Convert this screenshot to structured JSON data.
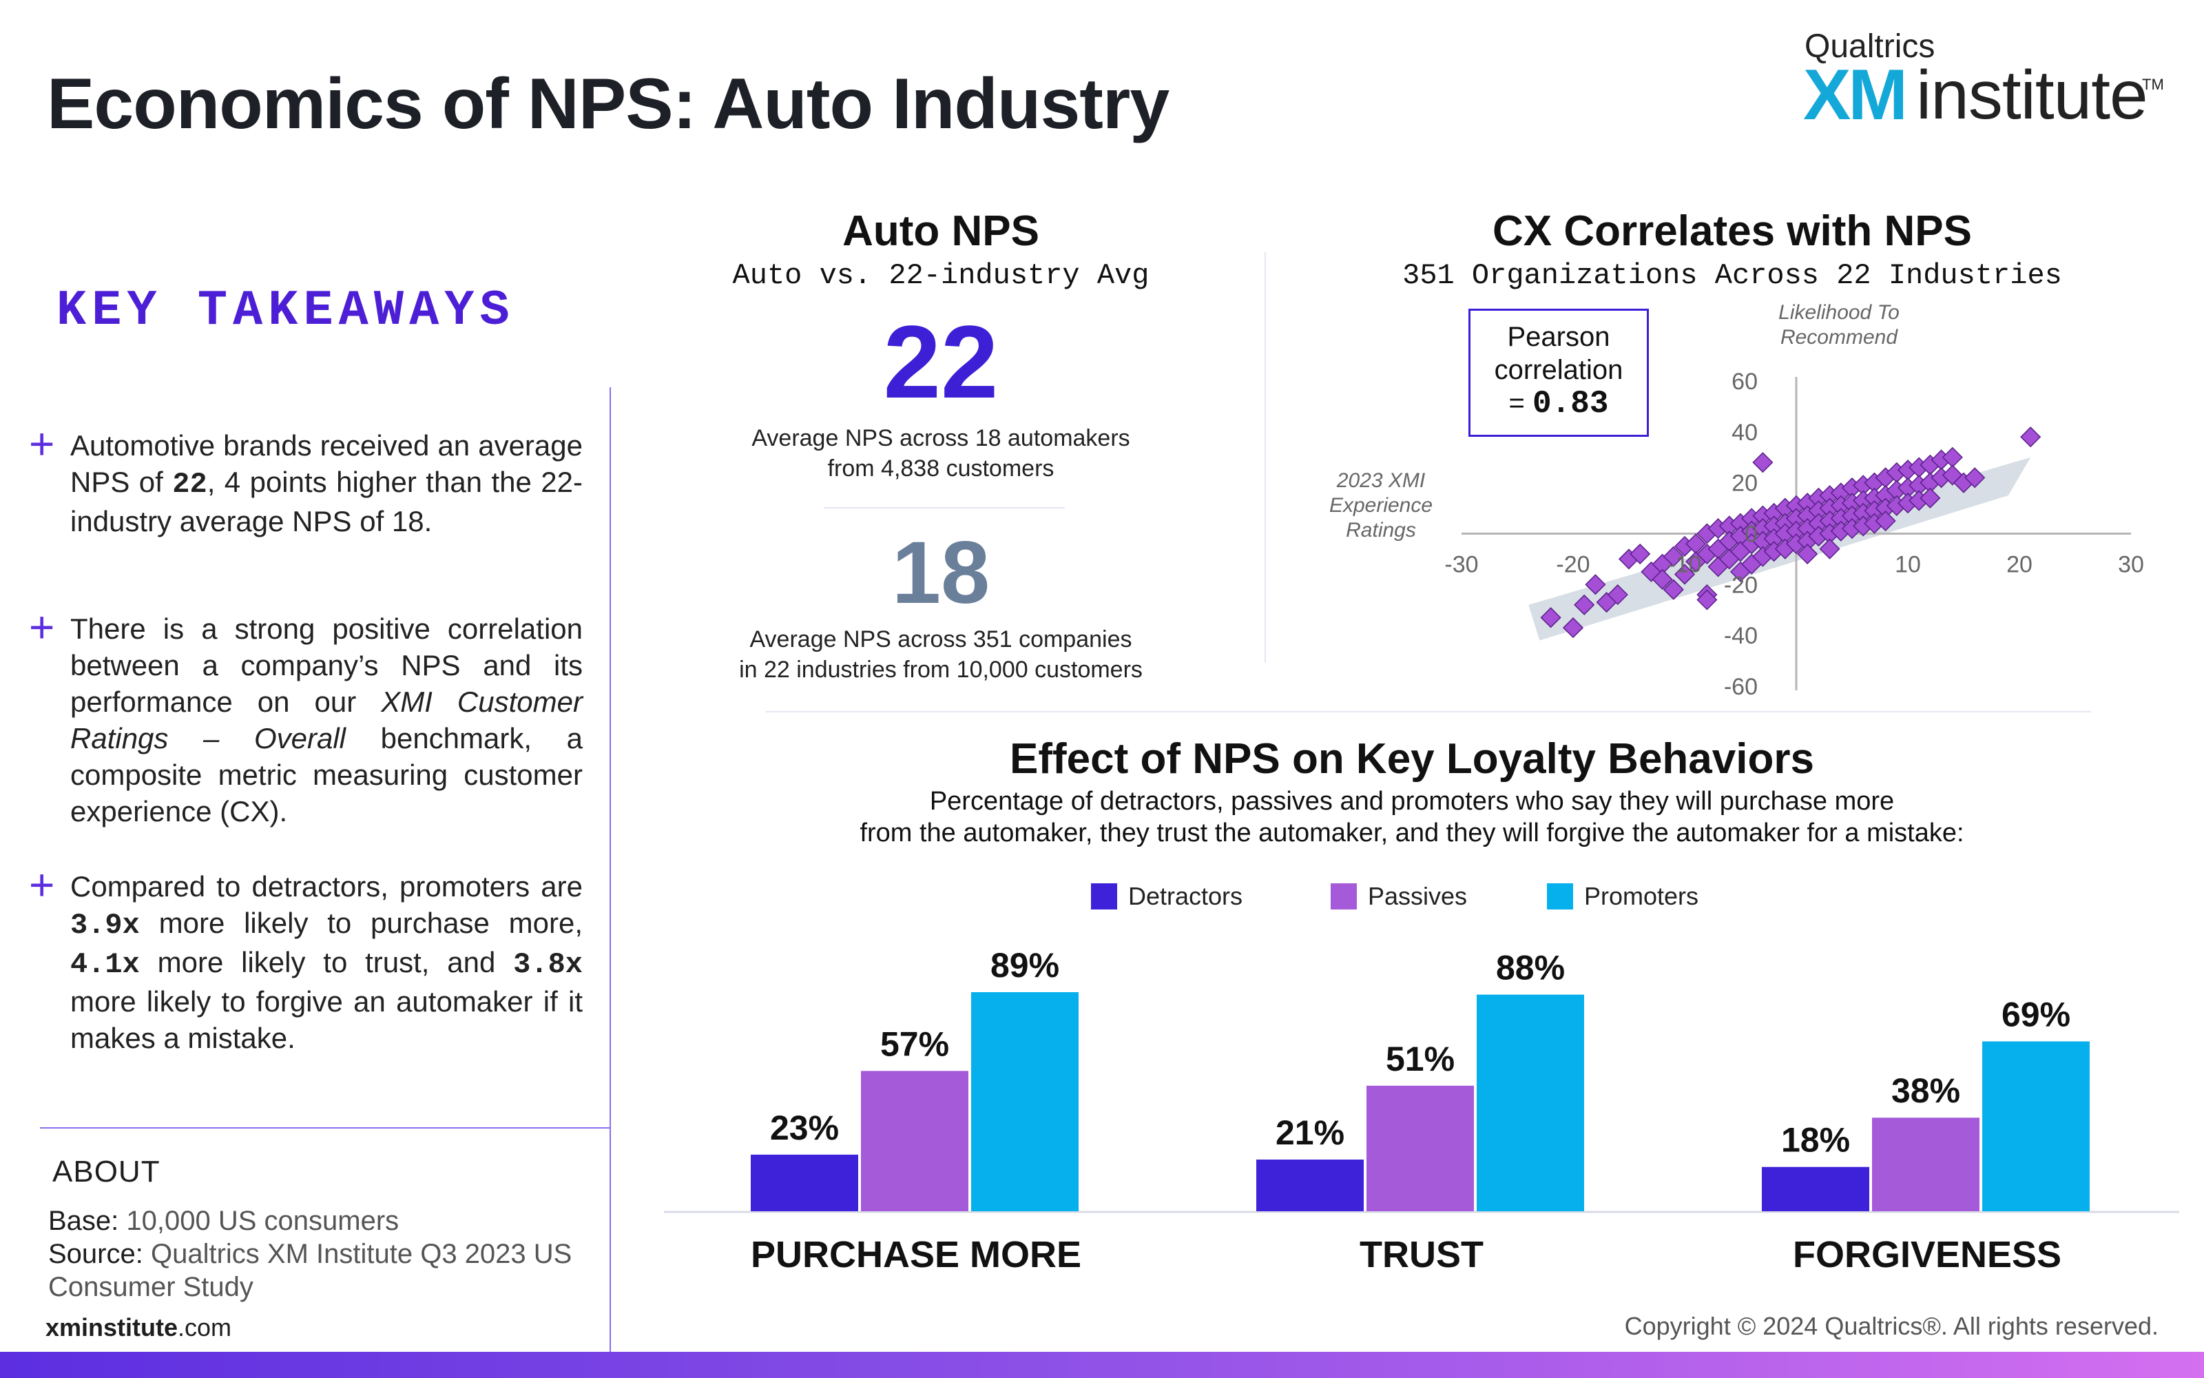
{
  "header": {
    "title": "Economics of NPS: Auto Industry",
    "logo_top": "Qualtrics",
    "logo_xm": "XM",
    "logo_institute": "institute",
    "logo_tm": "TM"
  },
  "takeaways": {
    "title": "KEY TAKEAWAYS",
    "bullet_symbol": "+",
    "items": [
      {
        "p1": "Automotive brands received an average NPS of ",
        "b1": "22",
        "p2": ", 4 points higher than the 22-industry average NPS of 18."
      },
      {
        "p1": " There is a strong positive correlation between a company’s NPS and its performance on our ",
        "i1": "XMI Customer Ratings – Overall",
        "p2": " benchmark, a composite metric measuring customer experience (CX)."
      },
      {
        "p1": "Compared to detractors, promoters are ",
        "b1": "3.9x",
        "p2": " more likely to purchase more, ",
        "b2": "4.1x",
        "p3": " more likely to trust, and ",
        "b3": "3.8x",
        "p4": " more likely to forgive an automaker if it makes a mistake."
      }
    ]
  },
  "about": {
    "title": "ABOUT",
    "base_label": "Base:",
    "base_value": "10,000 US consumers",
    "source_label": "Source:",
    "source_value_1": "Qualtrics XM Institute Q3 2023 US",
    "source_value_2": "Consumer Study",
    "site_bold": "xminstitute",
    "site_rest": ".com"
  },
  "auto_nps": {
    "title": "Auto NPS",
    "subtitle": "Auto vs. 22-industry Avg",
    "auto_value": "22",
    "auto_caption_1": "Average NPS across 18 automakers",
    "auto_caption_2": "from 4,838 customers",
    "avg_value": "18",
    "avg_caption_1": "Average NPS across 351 companies",
    "avg_caption_2": "in 22 industries from 10,000 customers",
    "colors": {
      "auto": "#3d1fd6",
      "avg": "#6a7f9a"
    }
  },
  "cx_chart": {
    "title": "CX Correlates with NPS",
    "subtitle": "351 Organizations Across 22 Industries",
    "pearson_1": "Pearson",
    "pearson_2": "correlation",
    "pearson_eq": "= ",
    "pearson_value": "0.83",
    "y_caption_1": "Likelihood To",
    "y_caption_2": "Recommend",
    "x_caption_1": "2023 XMI",
    "x_caption_2": "Experience",
    "x_caption_3": "Ratings"
  },
  "loyalty": {
    "title": "Effect of NPS on Key Loyalty Behaviors",
    "subtitle_1": "Percentage of detractors, passives and promoters who say they will purchase more",
    "subtitle_2": "from the automaker, they trust the automaker, and they will forgive the automaker for a mistake:",
    "legend": [
      "Detractors",
      "Passives",
      "Promoters"
    ]
  },
  "copyright": "Copyright © 2024 Qualtrics®. All rights reserved.",
  "chart_data": [
    {
      "type": "scatter",
      "title": "CX Correlates with NPS",
      "subtitle": "351 Organizations Across 22 Industries",
      "xlabel": "2023 XMI Experience Ratings",
      "ylabel": "Likelihood To Recommend",
      "xlim": [
        -30,
        30
      ],
      "ylim": [
        -60,
        60
      ],
      "x_ticks": [
        -30,
        -20,
        -10,
        10,
        20,
        30
      ],
      "y_ticks": [
        60,
        40,
        20,
        0,
        -20,
        -40,
        -60
      ],
      "grid": false,
      "annotation": "Pearson correlation = 0.83",
      "marker_color": "#a44fd6",
      "trend_band_color": "#c9d3dc",
      "points": [
        [
          -22,
          -33
        ],
        [
          -20,
          -37
        ],
        [
          -19,
          -28
        ],
        [
          -18,
          -20
        ],
        [
          -17,
          -27
        ],
        [
          -16,
          -24
        ],
        [
          -15,
          -10
        ],
        [
          -14,
          -8
        ],
        [
          -13,
          -15
        ],
        [
          -12,
          -12
        ],
        [
          -11,
          -9
        ],
        [
          -11,
          -22
        ],
        [
          -10,
          -5
        ],
        [
          -10,
          -16
        ],
        [
          -9,
          -4
        ],
        [
          -9,
          -11
        ],
        [
          -8,
          0
        ],
        [
          -8,
          -8
        ],
        [
          -8,
          -24
        ],
        [
          -7,
          2
        ],
        [
          -7,
          -6
        ],
        [
          -7,
          -13
        ],
        [
          -6,
          3
        ],
        [
          -6,
          -3
        ],
        [
          -6,
          -10
        ],
        [
          -5,
          4
        ],
        [
          -5,
          -1
        ],
        [
          -5,
          -7
        ],
        [
          -5,
          -15
        ],
        [
          -4,
          6
        ],
        [
          -4,
          1
        ],
        [
          -4,
          -4
        ],
        [
          -4,
          -12
        ],
        [
          -3,
          7
        ],
        [
          -3,
          2
        ],
        [
          -3,
          -3
        ],
        [
          -3,
          -9
        ],
        [
          -2,
          8
        ],
        [
          -2,
          3
        ],
        [
          -2,
          -2
        ],
        [
          -2,
          -7
        ],
        [
          -1,
          10
        ],
        [
          -1,
          4
        ],
        [
          -1,
          0
        ],
        [
          -1,
          -6
        ],
        [
          0,
          11
        ],
        [
          0,
          6
        ],
        [
          0,
          1
        ],
        [
          0,
          -4
        ],
        [
          1,
          12
        ],
        [
          1,
          7
        ],
        [
          1,
          2
        ],
        [
          1,
          -3
        ],
        [
          1,
          -8
        ],
        [
          2,
          14
        ],
        [
          2,
          9
        ],
        [
          2,
          4
        ],
        [
          2,
          -1
        ],
        [
          3,
          15
        ],
        [
          3,
          10
        ],
        [
          3,
          5
        ],
        [
          3,
          0
        ],
        [
          3,
          -6
        ],
        [
          4,
          16
        ],
        [
          4,
          11
        ],
        [
          4,
          6
        ],
        [
          4,
          1
        ],
        [
          5,
          18
        ],
        [
          5,
          12
        ],
        [
          5,
          7
        ],
        [
          5,
          2
        ],
        [
          6,
          19
        ],
        [
          6,
          13
        ],
        [
          6,
          8
        ],
        [
          6,
          3
        ],
        [
          7,
          20
        ],
        [
          7,
          14
        ],
        [
          7,
          9
        ],
        [
          7,
          4
        ],
        [
          8,
          22
        ],
        [
          8,
          15
        ],
        [
          8,
          10
        ],
        [
          8,
          5
        ],
        [
          9,
          24
        ],
        [
          9,
          17
        ],
        [
          9,
          11
        ],
        [
          10,
          25
        ],
        [
          10,
          18
        ],
        [
          10,
          12
        ],
        [
          11,
          26
        ],
        [
          11,
          19
        ],
        [
          11,
          13
        ],
        [
          12,
          27
        ],
        [
          12,
          20
        ],
        [
          12,
          14
        ],
        [
          13,
          29
        ],
        [
          13,
          22
        ],
        [
          14,
          30
        ],
        [
          14,
          23
        ],
        [
          15,
          20
        ],
        [
          16,
          22
        ],
        [
          21,
          38
        ],
        [
          -3,
          28
        ],
        [
          -8,
          -26
        ],
        [
          -12,
          -18
        ]
      ]
    },
    {
      "type": "bar",
      "title": "Effect of NPS on Key Loyalty Behaviors",
      "categories": [
        "PURCHASE MORE",
        "TRUST",
        "FORGIVENESS"
      ],
      "series": [
        {
          "name": "Detractors",
          "values": [
            23,
            21,
            18
          ],
          "labels": [
            "23%",
            "21%",
            "18%"
          ],
          "color": "#3d22d9"
        },
        {
          "name": "Passives",
          "values": [
            57,
            51,
            38
          ],
          "labels": [
            "57%",
            "51%",
            "38%"
          ],
          "color": "#a55ad9"
        },
        {
          "name": "Promoters",
          "values": [
            89,
            88,
            69
          ],
          "labels": [
            "89%",
            "88%",
            "69%"
          ],
          "color": "#05b0ec"
        }
      ],
      "ylim": [
        0,
        100
      ],
      "legend": "top"
    }
  ]
}
